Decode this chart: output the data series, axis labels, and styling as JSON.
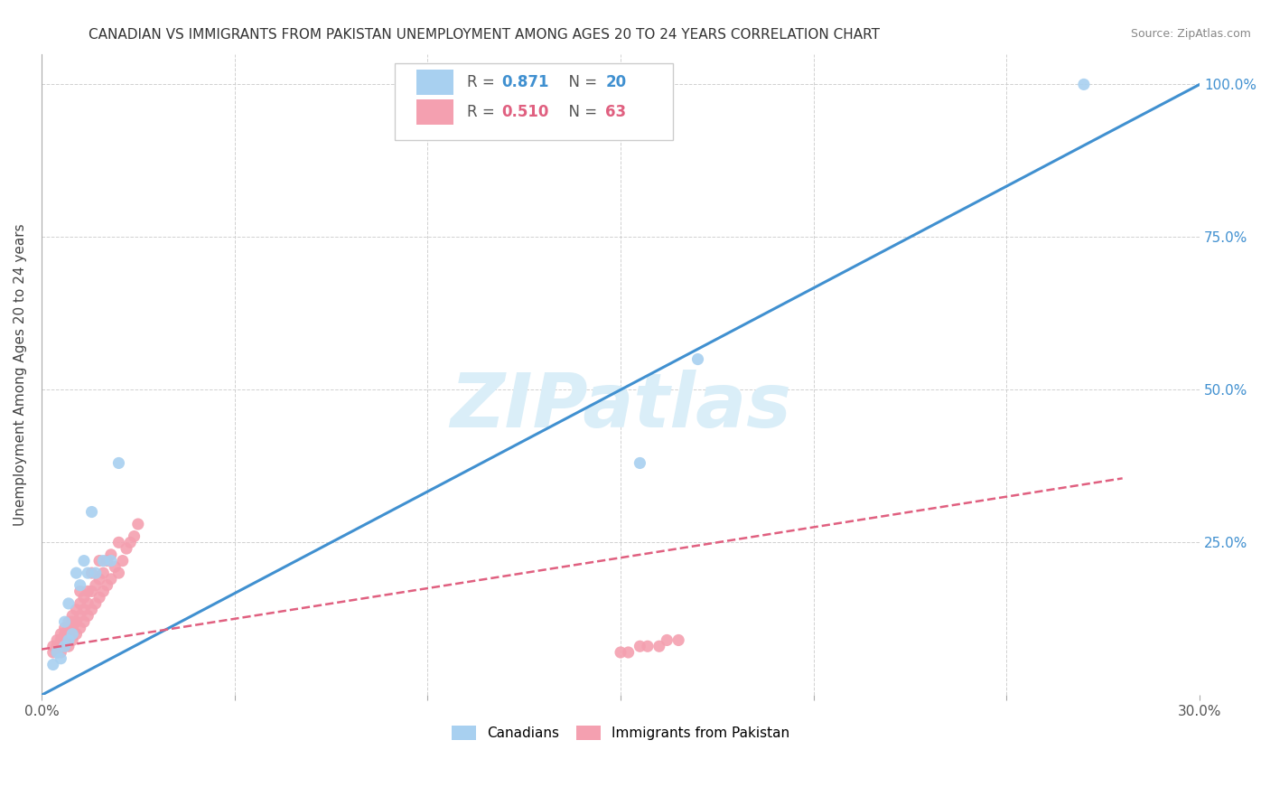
{
  "title": "CANADIAN VS IMMIGRANTS FROM PAKISTAN UNEMPLOYMENT AMONG AGES 20 TO 24 YEARS CORRELATION CHART",
  "source": "Source: ZipAtlas.com",
  "ylabel": "Unemployment Among Ages 20 to 24 years",
  "xlim": [
    0.0,
    0.3
  ],
  "ylim": [
    0.0,
    1.05
  ],
  "xticks": [
    0.0,
    0.05,
    0.1,
    0.15,
    0.2,
    0.25,
    0.3
  ],
  "xticklabels": [
    "0.0%",
    "",
    "",
    "",
    "",
    "",
    "30.0%"
  ],
  "yticks": [
    0.0,
    0.25,
    0.5,
    0.75,
    1.0
  ],
  "right_yticklabels": [
    "",
    "25.0%",
    "50.0%",
    "75.0%",
    "100.0%"
  ],
  "canadian_color": "#a8d0f0",
  "pakistan_color": "#f4a0b0",
  "canadian_line_color": "#4090d0",
  "pakistan_line_color": "#e06080",
  "background_color": "#ffffff",
  "watermark_color": "#daeef8",
  "canadians_label": "Canadians",
  "pakistan_label": "Immigrants from Pakistan",
  "canadian_line_x0": 0.0,
  "canadian_line_y0": 0.0,
  "canadian_line_x1": 0.3,
  "canadian_line_y1": 1.0,
  "pakistan_line_x0": 0.0,
  "pakistan_line_y0": 0.075,
  "pakistan_line_x1": 0.28,
  "pakistan_line_y1": 0.355,
  "can_x": [
    0.003,
    0.004,
    0.005,
    0.006,
    0.006,
    0.007,
    0.007,
    0.008,
    0.009,
    0.01,
    0.011,
    0.012,
    0.013,
    0.014,
    0.016,
    0.018,
    0.02,
    0.155,
    0.17,
    0.27
  ],
  "can_y": [
    0.05,
    0.07,
    0.06,
    0.08,
    0.12,
    0.09,
    0.15,
    0.1,
    0.2,
    0.18,
    0.22,
    0.2,
    0.3,
    0.2,
    0.22,
    0.22,
    0.38,
    0.38,
    0.55,
    1.0
  ],
  "pak_x": [
    0.003,
    0.003,
    0.004,
    0.004,
    0.004,
    0.005,
    0.005,
    0.005,
    0.005,
    0.006,
    0.006,
    0.006,
    0.006,
    0.007,
    0.007,
    0.007,
    0.007,
    0.008,
    0.008,
    0.008,
    0.008,
    0.009,
    0.009,
    0.009,
    0.01,
    0.01,
    0.01,
    0.01,
    0.011,
    0.011,
    0.011,
    0.012,
    0.012,
    0.012,
    0.013,
    0.013,
    0.013,
    0.014,
    0.014,
    0.015,
    0.015,
    0.015,
    0.016,
    0.016,
    0.017,
    0.017,
    0.018,
    0.018,
    0.019,
    0.02,
    0.02,
    0.021,
    0.022,
    0.023,
    0.024,
    0.025,
    0.15,
    0.152,
    0.155,
    0.157,
    0.16,
    0.162,
    0.165
  ],
  "pak_y": [
    0.07,
    0.08,
    0.07,
    0.08,
    0.09,
    0.07,
    0.08,
    0.09,
    0.1,
    0.08,
    0.09,
    0.1,
    0.11,
    0.08,
    0.1,
    0.11,
    0.12,
    0.09,
    0.11,
    0.12,
    0.13,
    0.1,
    0.12,
    0.14,
    0.11,
    0.13,
    0.15,
    0.17,
    0.12,
    0.14,
    0.16,
    0.13,
    0.15,
    0.17,
    0.14,
    0.17,
    0.2,
    0.15,
    0.18,
    0.16,
    0.19,
    0.22,
    0.17,
    0.2,
    0.18,
    0.22,
    0.19,
    0.23,
    0.21,
    0.2,
    0.25,
    0.22,
    0.24,
    0.25,
    0.26,
    0.28,
    0.07,
    0.07,
    0.08,
    0.08,
    0.08,
    0.09,
    0.09
  ]
}
